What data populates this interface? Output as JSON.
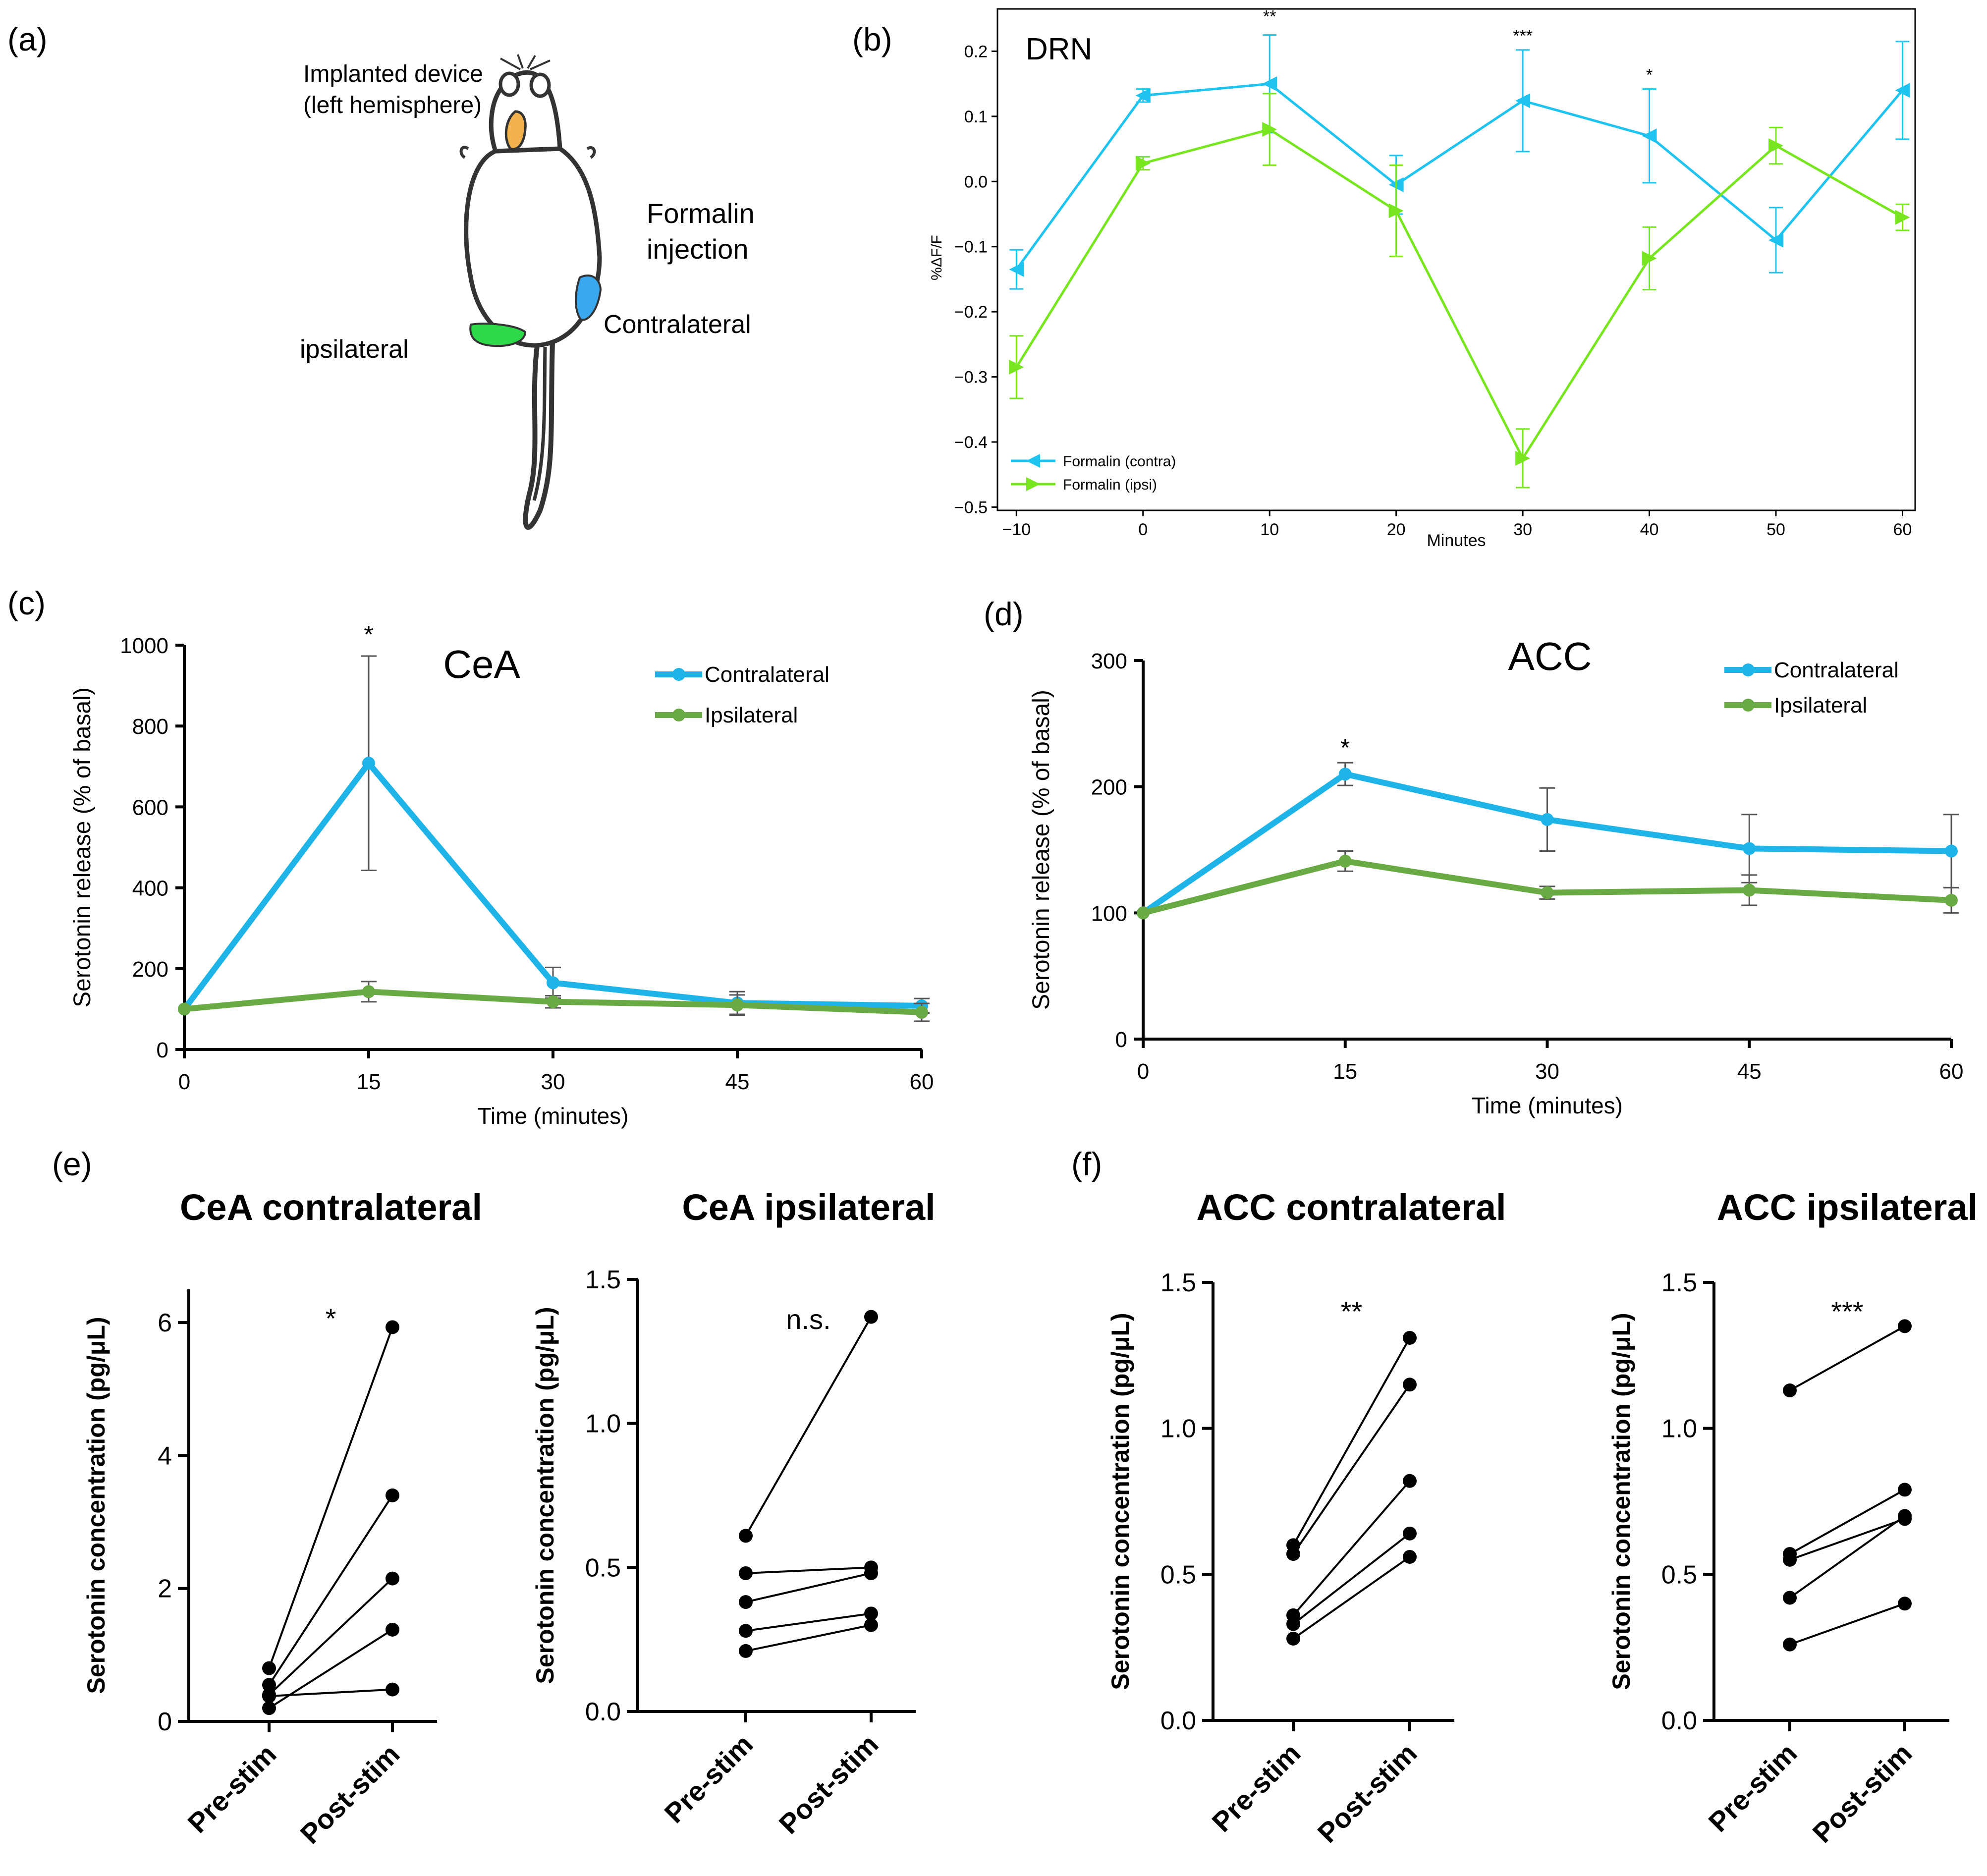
{
  "panels": {
    "a": {
      "label": "(a)",
      "device_label_1": "Implanted device",
      "device_label_2": "(left hemisphere)",
      "injection_label_1": "Formalin",
      "injection_label_2": "injection",
      "contralateral_label": "Contralateral",
      "ipsilateral_label": "ipsilateral"
    },
    "b": {
      "label": "(b)"
    },
    "c": {
      "label": "(c)"
    },
    "d": {
      "label": "(d)"
    },
    "e": {
      "label": "(e)"
    },
    "f": {
      "label": "(f)"
    }
  },
  "colors": {
    "dr_contra": "#1ec3f0",
    "dr_ipsi": "#78e61e",
    "contra": "#1fb4e8",
    "ipsi": "#6aaa45",
    "axis": "#000000",
    "error": "#555555",
    "paw_contra": "#3aa8ee",
    "paw_ipsi": "#2ed94a",
    "device": "#f2b24e"
  },
  "chart_data": [
    {
      "id": "b",
      "type": "line",
      "title": "DRN",
      "xlabel": "Minutes",
      "ylabel": "%ΔF/F",
      "xlim": [
        -11.5,
        61
      ],
      "ylim": [
        -0.505,
        0.265
      ],
      "xticks": [
        -10,
        0,
        10,
        20,
        30,
        40,
        50,
        60
      ],
      "xtick_labels": [
        "−10",
        "0",
        "10",
        "20",
        "30",
        "40",
        "50",
        "60"
      ],
      "yticks": [
        0.2,
        0.1,
        0.0,
        -0.1,
        -0.2,
        -0.3,
        -0.4,
        -0.5
      ],
      "ytick_labels": [
        "0.2",
        "0.1",
        "0.0",
        "−0.1",
        "−0.2",
        "−0.3",
        "−0.4",
        "−0.5"
      ],
      "x": [
        -10,
        0,
        10,
        20,
        30,
        40,
        50,
        60
      ],
      "series": [
        {
          "name": "Formalin (contra)",
          "values": [
            -0.135,
            0.132,
            0.15,
            -0.005,
            0.124,
            0.07,
            -0.09,
            0.14
          ],
          "errors": [
            0.03,
            0.01,
            0.075,
            0.045,
            0.078,
            0.072,
            0.05,
            0.075
          ],
          "marker": "tri-left"
        },
        {
          "name": "Formalin (ipsi)",
          "values": [
            -0.285,
            0.028,
            0.08,
            -0.045,
            -0.425,
            -0.118,
            0.055,
            -0.055
          ],
          "errors": [
            0.048,
            0.01,
            0.055,
            0.07,
            0.045,
            0.048,
            0.028,
            0.02
          ],
          "marker": "tri-right"
        }
      ],
      "annotations": [
        {
          "x": 10,
          "y": 0.245,
          "text": "**"
        },
        {
          "x": 30,
          "y": 0.215,
          "text": "***"
        },
        {
          "x": 40,
          "y": 0.155,
          "text": "*"
        }
      ],
      "legend": "lower-left"
    },
    {
      "id": "c",
      "type": "line",
      "title": "CeA",
      "xlabel": "Time (minutes)",
      "ylabel": "Serotonin release (% of basal)",
      "xlim": [
        0,
        60
      ],
      "ylim": [
        0,
        1000
      ],
      "xticks": [
        0,
        15,
        30,
        45,
        60
      ],
      "yticks": [
        0,
        200,
        400,
        600,
        800,
        1000
      ],
      "x": [
        0,
        15,
        30,
        45,
        60
      ],
      "series": [
        {
          "name": "Contralateral",
          "values": [
            100,
            708,
            165,
            115,
            108
          ],
          "errors": [
            0,
            265,
            38,
            28,
            18
          ]
        },
        {
          "name": "Ipsilateral",
          "values": [
            100,
            143,
            118,
            110,
            92
          ],
          "errors": [
            0,
            25,
            15,
            25,
            22
          ]
        }
      ],
      "annotations": [
        {
          "x": 15,
          "y": 1030,
          "text": "*"
        }
      ],
      "legend": "top-right"
    },
    {
      "id": "d",
      "type": "line",
      "title": "ACC",
      "xlabel": "Time (minutes)",
      "ylabel": "Serotonin release (% of basal)",
      "xlim": [
        0,
        60
      ],
      "ylim": [
        0,
        300
      ],
      "xticks": [
        0,
        15,
        30,
        45,
        60
      ],
      "yticks": [
        0,
        100,
        200,
        300
      ],
      "x": [
        0,
        15,
        30,
        45,
        60
      ],
      "series": [
        {
          "name": "Contralateral",
          "values": [
            100,
            210,
            174,
            151,
            149
          ],
          "errors": [
            0,
            9,
            25,
            27,
            29
          ]
        },
        {
          "name": "Ipsilateral",
          "values": [
            100,
            141,
            116,
            118,
            110
          ],
          "errors": [
            0,
            8,
            5,
            12,
            10
          ]
        }
      ],
      "annotations": [
        {
          "x": 15,
          "y": 232,
          "text": "*"
        }
      ],
      "legend": "top-right"
    },
    {
      "id": "e1",
      "type": "scatter",
      "title": "CeA contralateral",
      "ylabel": "Serotonin concentration (pg/μL)",
      "categories": [
        "Pre-stim",
        "Post-stim"
      ],
      "ylim": [
        0,
        6.5
      ],
      "yticks": [
        0,
        2,
        4,
        6
      ],
      "ytick_labels": [
        "0",
        "2",
        "4",
        "6"
      ],
      "pairs": [
        [
          0.8,
          5.93
        ],
        [
          0.55,
          3.4
        ],
        [
          0.4,
          2.15
        ],
        [
          0.2,
          1.38
        ],
        [
          0.38,
          0.48
        ]
      ],
      "significance": "*"
    },
    {
      "id": "e2",
      "type": "scatter",
      "title": "CeA ipsilateral",
      "ylabel": "Serotonin concentration (pg/μL)",
      "categories": [
        "Pre-stim",
        "Post-stim"
      ],
      "ylim": [
        0,
        1.5
      ],
      "yticks": [
        0,
        0.5,
        1.0,
        1.5
      ],
      "ytick_labels": [
        "0.0",
        "0.5",
        "1.0",
        "1.5"
      ],
      "pairs": [
        [
          0.61,
          1.37
        ],
        [
          0.48,
          0.5
        ],
        [
          0.38,
          0.48
        ],
        [
          0.28,
          0.34
        ],
        [
          0.21,
          0.3
        ]
      ],
      "significance": "n.s."
    },
    {
      "id": "f1",
      "type": "scatter",
      "title": "ACC contralateral",
      "ylabel": "Serotonin concentration (pg/μL)",
      "categories": [
        "Pre-stim",
        "Post-stim"
      ],
      "ylim": [
        0,
        1.5
      ],
      "yticks": [
        0,
        0.5,
        1.0,
        1.5
      ],
      "ytick_labels": [
        "0.0",
        "0.5",
        "1.0",
        "1.5"
      ],
      "pairs": [
        [
          0.6,
          1.31
        ],
        [
          0.57,
          1.15
        ],
        [
          0.36,
          0.82
        ],
        [
          0.33,
          0.64
        ],
        [
          0.28,
          0.56
        ]
      ],
      "significance": "**"
    },
    {
      "id": "f2",
      "type": "scatter",
      "title": "ACC ipsilateral",
      "ylabel": "Serotonin concentration (pg/μL)",
      "categories": [
        "Pre-stim",
        "Post-stim"
      ],
      "ylim": [
        0,
        1.5
      ],
      "yticks": [
        0,
        0.5,
        1.0,
        1.5
      ],
      "ytick_labels": [
        "0.0",
        "0.5",
        "1.0",
        "1.5"
      ],
      "pairs": [
        [
          1.13,
          1.35
        ],
        [
          0.57,
          0.79
        ],
        [
          0.55,
          0.69
        ],
        [
          0.42,
          0.7
        ],
        [
          0.26,
          0.4
        ]
      ],
      "significance": "***"
    }
  ]
}
